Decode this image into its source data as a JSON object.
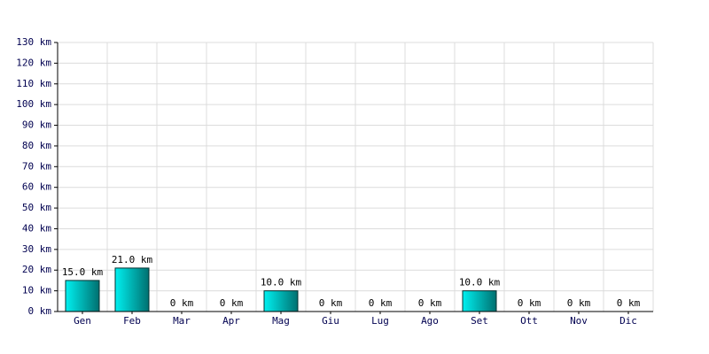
{
  "chart_data": {
    "type": "bar",
    "categories": [
      "Gen",
      "Feb",
      "Mar",
      "Apr",
      "Mag",
      "Giu",
      "Lug",
      "Ago",
      "Set",
      "Ott",
      "Nov",
      "Dic"
    ],
    "values": [
      15,
      21,
      0,
      0,
      10,
      0,
      0,
      0,
      10,
      0,
      0,
      0
    ],
    "value_labels": [
      "15.0 km",
      "21.0 km",
      "0 km",
      "0 km",
      "10.0 km",
      "0 km",
      "0 km",
      "0 km",
      "10.0 km",
      "0 km",
      "0 km",
      "0 km"
    ],
    "color": "#00c8c8",
    "ylim": [
      0,
      130
    ],
    "yticks": [
      {
        "value": 0,
        "label": "0 km"
      },
      {
        "value": 10,
        "label": "10 km"
      },
      {
        "value": 20,
        "label": "20 km"
      },
      {
        "value": 30,
        "label": "30 km"
      },
      {
        "value": 40,
        "label": "40 km"
      },
      {
        "value": 50,
        "label": "50 km"
      },
      {
        "value": 60,
        "label": "60 km"
      },
      {
        "value": 70,
        "label": "70 km"
      },
      {
        "value": 80,
        "label": "80 km"
      },
      {
        "value": 90,
        "label": "90 km"
      },
      {
        "value": 100,
        "label": "100 km"
      },
      {
        "value": 110,
        "label": "110 km"
      },
      {
        "value": 120,
        "label": "120 km"
      },
      {
        "value": 130,
        "label": "130 km"
      }
    ],
    "grid": true
  }
}
